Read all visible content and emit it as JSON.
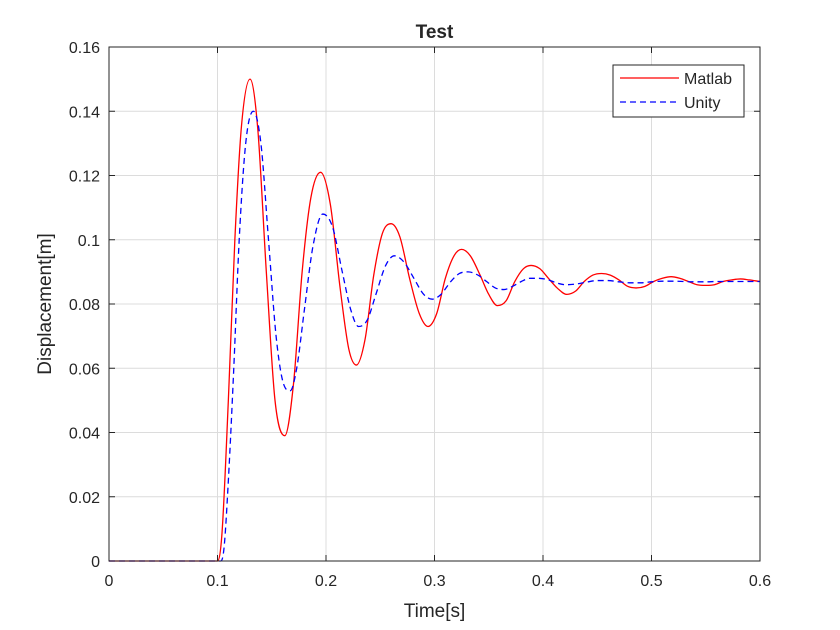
{
  "chart_data": {
    "type": "line",
    "title": "Test",
    "xlabel": "Time[s]",
    "ylabel": "Displacement[m]",
    "xlim": [
      0,
      0.6
    ],
    "ylim": [
      0,
      0.16
    ],
    "grid": true,
    "legend_position": "top-right",
    "x_ticks": [
      0,
      0.1,
      0.2,
      0.3,
      0.4,
      0.5,
      0.6
    ],
    "x_tick_labels": [
      "0",
      "0.1",
      "0.2",
      "0.3",
      "0.4",
      "0.5",
      "0.6"
    ],
    "y_ticks": [
      0,
      0.02,
      0.04,
      0.06,
      0.08,
      0.1,
      0.12,
      0.14,
      0.16
    ],
    "y_tick_labels": [
      "0",
      "0.02",
      "0.04",
      "0.06",
      "0.08",
      "0.1",
      "0.12",
      "0.14",
      "0.16"
    ],
    "series": [
      {
        "name": "Matlab",
        "color": "#ff0000",
        "line_style": "solid",
        "points": [
          [
            0,
            0
          ],
          [
            0.1,
            0
          ],
          [
            0.104,
            0.008
          ],
          [
            0.11,
            0.05
          ],
          [
            0.116,
            0.1
          ],
          [
            0.122,
            0.135
          ],
          [
            0.13,
            0.15
          ],
          [
            0.137,
            0.135
          ],
          [
            0.145,
            0.09
          ],
          [
            0.153,
            0.05
          ],
          [
            0.162,
            0.039
          ],
          [
            0.17,
            0.055
          ],
          [
            0.178,
            0.09
          ],
          [
            0.186,
            0.113
          ],
          [
            0.195,
            0.121
          ],
          [
            0.204,
            0.111
          ],
          [
            0.213,
            0.085
          ],
          [
            0.221,
            0.066
          ],
          [
            0.228,
            0.061
          ],
          [
            0.236,
            0.069
          ],
          [
            0.244,
            0.089
          ],
          [
            0.252,
            0.102
          ],
          [
            0.26,
            0.105
          ],
          [
            0.268,
            0.101
          ],
          [
            0.277,
            0.088
          ],
          [
            0.286,
            0.077
          ],
          [
            0.294,
            0.073
          ],
          [
            0.302,
            0.077
          ],
          [
            0.31,
            0.088
          ],
          [
            0.318,
            0.095
          ],
          [
            0.325,
            0.097
          ],
          [
            0.333,
            0.095
          ],
          [
            0.342,
            0.089
          ],
          [
            0.35,
            0.083
          ],
          [
            0.358,
            0.0795
          ],
          [
            0.366,
            0.081
          ],
          [
            0.374,
            0.087
          ],
          [
            0.382,
            0.091
          ],
          [
            0.389,
            0.092
          ],
          [
            0.397,
            0.091
          ],
          [
            0.405,
            0.088
          ],
          [
            0.413,
            0.085
          ],
          [
            0.422,
            0.083
          ],
          [
            0.43,
            0.084
          ],
          [
            0.438,
            0.087
          ],
          [
            0.446,
            0.089
          ],
          [
            0.454,
            0.0895
          ],
          [
            0.462,
            0.089
          ],
          [
            0.47,
            0.0875
          ],
          [
            0.478,
            0.0855
          ],
          [
            0.486,
            0.085
          ],
          [
            0.494,
            0.0855
          ],
          [
            0.502,
            0.087
          ],
          [
            0.51,
            0.088
          ],
          [
            0.518,
            0.0885
          ],
          [
            0.526,
            0.088
          ],
          [
            0.534,
            0.087
          ],
          [
            0.542,
            0.086
          ],
          [
            0.55,
            0.0858
          ],
          [
            0.558,
            0.086
          ],
          [
            0.566,
            0.087
          ],
          [
            0.574,
            0.0875
          ],
          [
            0.582,
            0.0878
          ],
          [
            0.59,
            0.0875
          ],
          [
            0.6,
            0.087
          ]
        ]
      },
      {
        "name": "Unity",
        "color": "#0000ff",
        "line_style": "dashed",
        "points": [
          [
            0,
            0
          ],
          [
            0.1,
            0
          ],
          [
            0.103,
            0
          ],
          [
            0.106,
            0.004
          ],
          [
            0.11,
            0.025
          ],
          [
            0.115,
            0.06
          ],
          [
            0.12,
            0.1
          ],
          [
            0.126,
            0.13
          ],
          [
            0.133,
            0.14
          ],
          [
            0.14,
            0.13
          ],
          [
            0.147,
            0.1
          ],
          [
            0.154,
            0.07
          ],
          [
            0.161,
            0.055
          ],
          [
            0.167,
            0.053
          ],
          [
            0.173,
            0.06
          ],
          [
            0.18,
            0.078
          ],
          [
            0.188,
            0.098
          ],
          [
            0.197,
            0.108
          ],
          [
            0.206,
            0.104
          ],
          [
            0.215,
            0.09
          ],
          [
            0.223,
            0.078
          ],
          [
            0.23,
            0.073
          ],
          [
            0.238,
            0.075
          ],
          [
            0.246,
            0.083
          ],
          [
            0.255,
            0.092
          ],
          [
            0.263,
            0.095
          ],
          [
            0.272,
            0.093
          ],
          [
            0.281,
            0.088
          ],
          [
            0.29,
            0.083
          ],
          [
            0.298,
            0.0815
          ],
          [
            0.306,
            0.083
          ],
          [
            0.315,
            0.087
          ],
          [
            0.323,
            0.0895
          ],
          [
            0.331,
            0.09
          ],
          [
            0.34,
            0.089
          ],
          [
            0.348,
            0.087
          ],
          [
            0.356,
            0.085
          ],
          [
            0.364,
            0.0845
          ],
          [
            0.372,
            0.0855
          ],
          [
            0.38,
            0.087
          ],
          [
            0.388,
            0.088
          ],
          [
            0.396,
            0.088
          ],
          [
            0.405,
            0.0875
          ],
          [
            0.413,
            0.0865
          ],
          [
            0.421,
            0.086
          ],
          [
            0.43,
            0.0862
          ],
          [
            0.44,
            0.0868
          ],
          [
            0.45,
            0.0873
          ],
          [
            0.46,
            0.0873
          ],
          [
            0.47,
            0.0869
          ],
          [
            0.48,
            0.0866
          ],
          [
            0.49,
            0.0866
          ],
          [
            0.5,
            0.0869
          ],
          [
            0.51,
            0.0871
          ],
          [
            0.52,
            0.0871
          ],
          [
            0.53,
            0.087
          ],
          [
            0.54,
            0.0869
          ],
          [
            0.55,
            0.0869
          ],
          [
            0.56,
            0.087
          ],
          [
            0.57,
            0.087
          ],
          [
            0.58,
            0.087
          ],
          [
            0.59,
            0.087
          ],
          [
            0.6,
            0.087
          ]
        ]
      }
    ]
  }
}
